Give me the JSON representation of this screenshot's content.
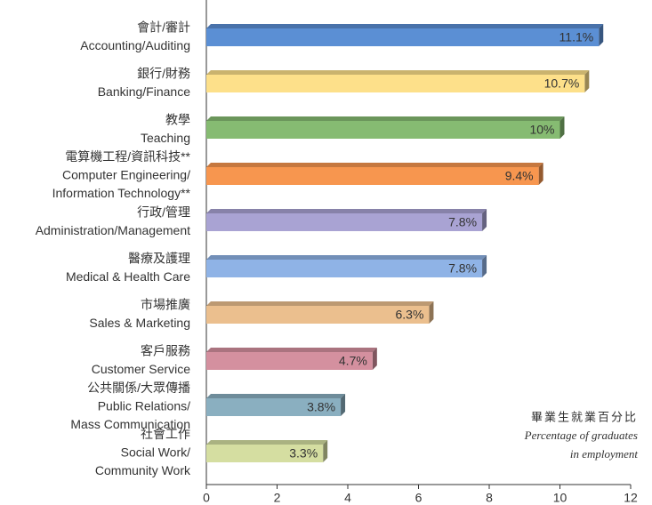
{
  "chart_data": {
    "type": "bar",
    "orientation": "horizontal",
    "categories": [
      [
        "會計/審計",
        "Accounting/Auditing"
      ],
      [
        "銀行/財務",
        "Banking/Finance"
      ],
      [
        "教學",
        "Teaching"
      ],
      [
        "電算機工程/資訊科技**",
        "Computer Engineering/",
        "Information Technology**"
      ],
      [
        "行政/管理",
        "Administration/Management"
      ],
      [
        "醫療及護理",
        "Medical & Health Care"
      ],
      [
        "市場推廣",
        "Sales & Marketing"
      ],
      [
        "客戶服務",
        "Customer Service"
      ],
      [
        "公共關係/大眾傳播",
        "Public Relations/",
        "Mass Communication"
      ],
      [
        "社會工作",
        "Social Work/",
        "Community Work"
      ]
    ],
    "values": [
      11.1,
      10.7,
      10,
      9.4,
      7.8,
      7.8,
      6.3,
      4.7,
      3.8,
      3.3
    ],
    "value_labels": [
      "11.1%",
      "10.7%",
      "10%",
      "9.4%",
      "7.8%",
      "7.8%",
      "6.3%",
      "4.7%",
      "3.8%",
      "3.3%"
    ],
    "colors": [
      "#5b8fd4",
      "#fde08a",
      "#86bb72",
      "#f7964f",
      "#a9a3d3",
      "#8fb3e6",
      "#ebbf8e",
      "#d4909f",
      "#8aafc0",
      "#d5dea1"
    ],
    "xlim": [
      0,
      12
    ],
    "xticks": [
      0,
      2,
      4,
      6,
      8,
      10,
      12
    ],
    "annotation": [
      "畢業生就業百分比",
      "Percentage of graduates",
      "in employment"
    ]
  }
}
